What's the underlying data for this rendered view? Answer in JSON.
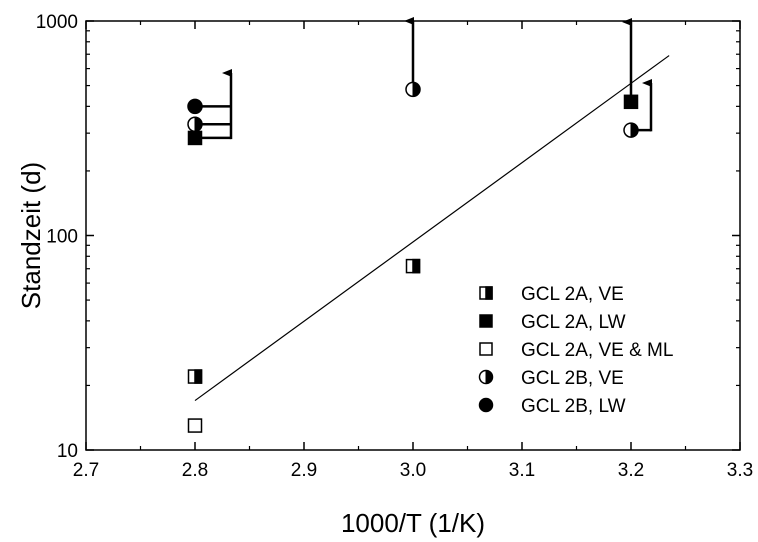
{
  "chart_data": {
    "type": "scatter",
    "title": "",
    "xlabel": "1000/T (1/K)",
    "ylabel": "Standzeit (d)",
    "xlim": [
      2.7,
      3.3
    ],
    "ylim": [
      10,
      1000
    ],
    "yscale": "log",
    "grid": false,
    "legend_position": "lower-right",
    "x_ticks": [
      2.7,
      2.8,
      2.9,
      3.0,
      3.1,
      3.2,
      3.3
    ],
    "x_tick_labels": [
      "2.7",
      "2.8",
      "2.9",
      "3.0",
      "3.1",
      "3.2",
      "3.3"
    ],
    "y_ticks": [
      10,
      100,
      1000
    ],
    "y_tick_labels": [
      "10",
      "100",
      "1000"
    ],
    "series": [
      {
        "name": "GCL 2A, VE",
        "marker": "square-right-half",
        "points": [
          [
            2.8,
            22
          ],
          [
            3.0,
            72
          ]
        ]
      },
      {
        "name": "GCL 2A, LW",
        "marker": "square-filled",
        "points": [
          [
            2.8,
            285
          ],
          [
            3.2,
            420
          ]
        ]
      },
      {
        "name": "GCL 2A, VE & ML",
        "marker": "square-open",
        "points": [
          [
            2.8,
            13
          ]
        ]
      },
      {
        "name": "GCL 2B, VE",
        "marker": "circle-right-half",
        "points": [
          [
            2.8,
            330
          ],
          [
            3.0,
            480
          ],
          [
            3.2,
            310
          ]
        ]
      },
      {
        "name": "GCL 2B, LW",
        "marker": "circle-filled",
        "points": [
          [
            2.8,
            400
          ]
        ]
      }
    ],
    "fit_line": {
      "x": [
        2.8,
        3.235
      ],
      "y": [
        17,
        690
      ]
    }
  }
}
